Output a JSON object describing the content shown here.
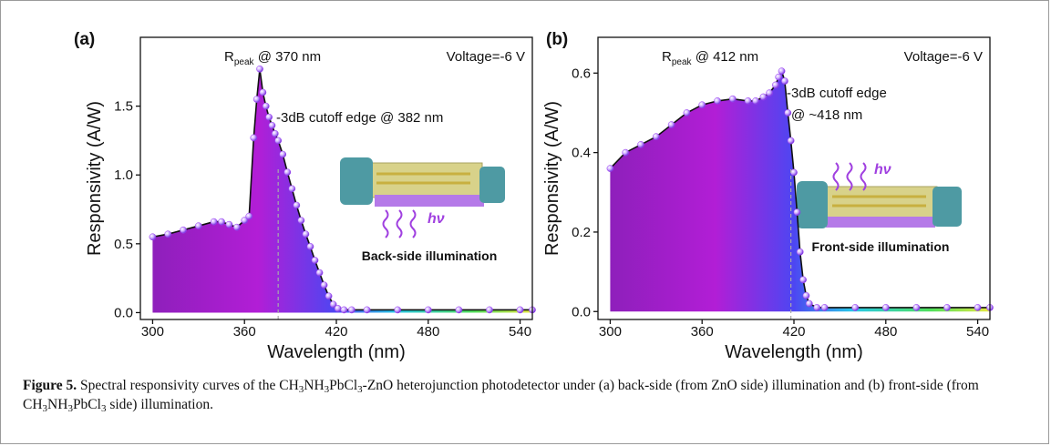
{
  "chart_data": [
    {
      "type": "line",
      "panel_label": "(a)",
      "x_label": "Wavelength (nm)",
      "y_label": "Responsivity (A/W)",
      "voltage": "Voltage=-6 V",
      "peak_label": [
        "R",
        "peak",
        " @ 370 nm"
      ],
      "cutoff_label": [
        "-3dB cutoff edge @ 382 nm"
      ],
      "cutoff_x": 382,
      "illumination": "Back-side illumination",
      "hv": "hν",
      "xlim": [
        292,
        548
      ],
      "xticks": [
        300,
        360,
        420,
        480,
        540
      ],
      "ylim": [
        -0.05,
        2.0
      ],
      "yticks": [
        {
          "value": 0,
          "label": "0.0"
        },
        0.5,
        {
          "value": 1,
          "label": "1.0"
        },
        1.5
      ],
      "x": [
        300,
        310,
        320,
        330,
        340,
        345,
        350,
        355,
        360,
        363,
        366,
        368,
        370,
        372,
        374,
        376,
        378,
        380,
        382,
        385,
        388,
        391,
        394,
        397,
        400,
        403,
        406,
        409,
        412,
        415,
        418,
        421,
        425,
        430,
        440,
        460,
        480,
        500,
        520,
        540,
        548
      ],
      "series": [
        {
          "color": "#9b3ff0",
          "values": [
            0.55,
            0.57,
            0.6,
            0.63,
            0.66,
            0.66,
            0.64,
            0.62,
            0.67,
            0.7,
            1.27,
            1.55,
            1.77,
            1.6,
            1.5,
            1.42,
            1.36,
            1.3,
            1.25,
            1.15,
            1.02,
            0.9,
            0.78,
            0.67,
            0.57,
            0.48,
            0.38,
            0.29,
            0.2,
            0.12,
            0.06,
            0.03,
            0.02,
            0.02,
            0.02,
            0.02,
            0.02,
            0.02,
            0.02,
            0.02,
            0.02
          ]
        }
      ]
    },
    {
      "type": "line",
      "panel_label": "(b)",
      "x_label": "Wavelength (nm)",
      "y_label": "Responsivity (A/W)",
      "voltage": "Voltage=-6 V",
      "peak_label": [
        "R",
        "peak",
        " @ 412 nm"
      ],
      "cutoff_label": [
        "-3dB cutoff edge",
        "@ ~418 nm"
      ],
      "cutoff_x": 418,
      "illumination": "Front-side illumination",
      "hv": "hν",
      "xlim": [
        292,
        548
      ],
      "xticks": [
        300,
        360,
        420,
        480,
        540
      ],
      "ylim": [
        -0.02,
        0.69
      ],
      "yticks": [
        {
          "value": 0,
          "label": "0.0"
        },
        0.2,
        0.4,
        0.6
      ],
      "x": [
        300,
        310,
        320,
        330,
        340,
        350,
        360,
        370,
        380,
        390,
        395,
        400,
        404,
        408,
        410,
        412,
        414,
        416,
        418,
        420,
        422,
        424,
        426,
        428,
        430,
        435,
        440,
        460,
        480,
        500,
        520,
        540,
        548
      ],
      "series": [
        {
          "color": "#9b3ff0",
          "values": [
            0.36,
            0.4,
            0.42,
            0.44,
            0.47,
            0.5,
            0.52,
            0.53,
            0.535,
            0.53,
            0.53,
            0.54,
            0.55,
            0.57,
            0.59,
            0.605,
            0.58,
            0.5,
            0.43,
            0.35,
            0.25,
            0.15,
            0.08,
            0.04,
            0.02,
            0.01,
            0.01,
            0.01,
            0.01,
            0.01,
            0.01,
            0.01,
            0.01
          ]
        }
      ]
    }
  ],
  "caption": {
    "parts": [
      "Figure 5.",
      " Spectral responsivity curves of the CH",
      "3",
      "NH",
      "3",
      "PbCl",
      "3",
      "-ZnO heterojunction photodetector under (a) back-side (from ZnO side) illumination and (b) front-side (from CH",
      "3",
      "NH",
      "3",
      "PbCl",
      "3",
      " side) illumination."
    ]
  }
}
